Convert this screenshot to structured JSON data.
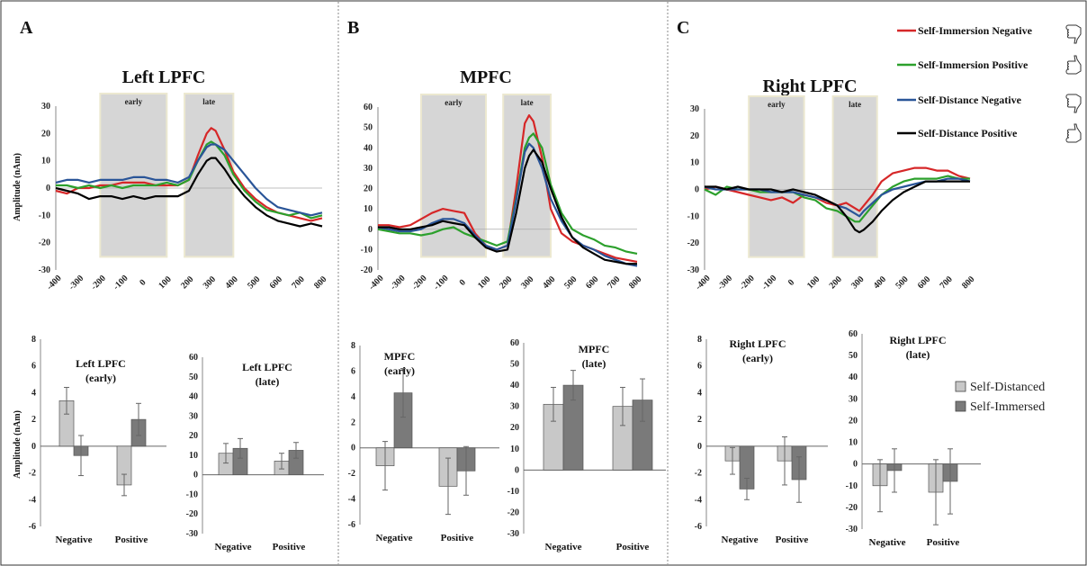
{
  "panels": [
    {
      "letter": "A"
    },
    {
      "letter": "B"
    },
    {
      "letter": "C"
    }
  ],
  "legend": {
    "lines": [
      {
        "label": "Self-Immersion Negative",
        "color": "#d62728",
        "icon": "thumbs-down-icon"
      },
      {
        "label": "Self-Immersion Positive",
        "color": "#2ca02c",
        "icon": "thumbs-up-icon"
      },
      {
        "label": "Self-Distance Negative",
        "color": "#2a5598",
        "icon": "thumbs-down-icon"
      },
      {
        "label": "Self-Distance Positive",
        "color": "#000000",
        "icon": "thumbs-up-icon"
      }
    ],
    "bars": [
      {
        "label": "Self-Distanced",
        "color": "#c8c8c8"
      },
      {
        "label": "Self-Immersed",
        "color": "#7a7a7a"
      }
    ]
  },
  "chart_data": [
    {
      "type": "line",
      "panel": "A",
      "title": "Left LPFC",
      "ylabel": "Amplitude (nAm)",
      "xlim": [
        -400,
        800
      ],
      "ylim": [
        -30,
        30
      ],
      "xticks": [
        -400,
        -300,
        -200,
        -100,
        0,
        100,
        200,
        300,
        400,
        500,
        600,
        700,
        800
      ],
      "yticks": [
        -30,
        -20,
        -10,
        0,
        10,
        20,
        30
      ],
      "windows": [
        {
          "label": "early",
          "range": [
            -200,
            100
          ]
        },
        {
          "label": "late",
          "range": [
            180,
            400
          ]
        }
      ],
      "x": [
        -400,
        -350,
        -300,
        -250,
        -200,
        -150,
        -100,
        -50,
        0,
        50,
        100,
        150,
        200,
        240,
        280,
        300,
        320,
        360,
        400,
        450,
        500,
        550,
        600,
        650,
        700,
        750,
        800
      ],
      "series": [
        {
          "name": "Self-Immersion Negative",
          "values": [
            -1,
            -2,
            0,
            0,
            1,
            1,
            2,
            2,
            2,
            1,
            1,
            1,
            3,
            12,
            20,
            22,
            21,
            14,
            6,
            0,
            -4,
            -7,
            -9,
            -10,
            -11,
            -12,
            -11
          ]
        },
        {
          "name": "Self-Immersion Positive",
          "values": [
            1,
            1,
            0,
            1,
            0,
            1,
            0,
            1,
            1,
            1,
            2,
            1,
            3,
            10,
            16,
            17,
            16,
            12,
            5,
            -1,
            -5,
            -8,
            -9,
            -10,
            -9,
            -11,
            -10
          ]
        },
        {
          "name": "Self-Distance Negative",
          "values": [
            2,
            3,
            3,
            2,
            3,
            3,
            3,
            4,
            4,
            3,
            3,
            2,
            4,
            10,
            15,
            16,
            16,
            14,
            10,
            5,
            0,
            -4,
            -7,
            -8,
            -9,
            -10,
            -9
          ]
        },
        {
          "name": "Self-Distance Positive",
          "values": [
            0,
            -1,
            -2,
            -4,
            -3,
            -3,
            -4,
            -3,
            -4,
            -3,
            -3,
            -3,
            -1,
            5,
            10,
            11,
            11,
            7,
            2,
            -3,
            -7,
            -10,
            -12,
            -13,
            -14,
            -13,
            -14
          ]
        }
      ]
    },
    {
      "type": "line",
      "panel": "B",
      "title": "MPFC",
      "xlim": [
        -400,
        800
      ],
      "ylim": [
        -20,
        60
      ],
      "xticks": [
        -400,
        -300,
        -200,
        -100,
        0,
        100,
        200,
        300,
        400,
        500,
        600,
        700,
        800
      ],
      "yticks": [
        -20,
        -10,
        0,
        10,
        20,
        30,
        40,
        50,
        60
      ],
      "windows": [
        {
          "label": "early",
          "range": [
            -200,
            100
          ]
        },
        {
          "label": "late",
          "range": [
            180,
            400
          ]
        }
      ],
      "x": [
        -400,
        -350,
        -300,
        -250,
        -200,
        -150,
        -100,
        -50,
        0,
        50,
        100,
        150,
        200,
        240,
        280,
        300,
        320,
        360,
        400,
        450,
        500,
        550,
        600,
        650,
        700,
        750,
        800
      ],
      "series": [
        {
          "name": "Self-Immersion Negative",
          "values": [
            2,
            2,
            1,
            2,
            5,
            8,
            10,
            9,
            8,
            -2,
            -8,
            -10,
            -8,
            20,
            52,
            56,
            53,
            35,
            10,
            -2,
            -6,
            -8,
            -10,
            -12,
            -14,
            -15,
            -16
          ]
        },
        {
          "name": "Self-Immersion Positive",
          "values": [
            0,
            -1,
            -2,
            -2,
            -3,
            -2,
            0,
            1,
            -2,
            -4,
            -6,
            -8,
            -6,
            15,
            40,
            45,
            47,
            40,
            22,
            8,
            0,
            -3,
            -5,
            -8,
            -9,
            -11,
            -12
          ]
        },
        {
          "name": "Self-Distance Negative",
          "values": [
            1,
            0,
            -1,
            -1,
            0,
            3,
            5,
            5,
            3,
            -3,
            -8,
            -10,
            -8,
            14,
            38,
            42,
            40,
            30,
            15,
            4,
            -4,
            -8,
            -10,
            -13,
            -15,
            -17,
            -18
          ]
        },
        {
          "name": "Self-Distance Positive",
          "values": [
            1,
            1,
            0,
            0,
            1,
            2,
            4,
            3,
            2,
            -4,
            -9,
            -11,
            -10,
            8,
            30,
            36,
            39,
            33,
            20,
            6,
            -4,
            -9,
            -12,
            -15,
            -16,
            -17,
            -17
          ]
        }
      ]
    },
    {
      "type": "line",
      "panel": "C",
      "title": "Right LPFC",
      "xlim": [
        -400,
        800
      ],
      "ylim": [
        -30,
        30
      ],
      "xticks": [
        -400,
        -300,
        -200,
        -100,
        0,
        100,
        200,
        300,
        400,
        500,
        600,
        700,
        800
      ],
      "yticks": [
        -30,
        -20,
        -10,
        0,
        10,
        20,
        30
      ],
      "windows": [
        {
          "label": "early",
          "range": [
            -200,
            50
          ]
        },
        {
          "label": "late",
          "range": [
            180,
            380
          ]
        }
      ],
      "x": [
        -400,
        -350,
        -300,
        -250,
        -200,
        -150,
        -100,
        -50,
        0,
        50,
        100,
        150,
        200,
        240,
        280,
        300,
        320,
        360,
        400,
        450,
        500,
        550,
        600,
        650,
        700,
        750,
        800
      ],
      "series": [
        {
          "name": "Self-Immersion Negative",
          "values": [
            0,
            1,
            0,
            -1,
            -2,
            -3,
            -4,
            -3,
            -5,
            -2,
            -3,
            -5,
            -6,
            -5,
            -7,
            -8,
            -6,
            -2,
            3,
            6,
            7,
            8,
            8,
            7,
            7,
            5,
            4
          ]
        },
        {
          "name": "Self-Immersion Positive",
          "values": [
            0,
            -2,
            1,
            0,
            0,
            -1,
            -1,
            -1,
            -1,
            -3,
            -4,
            -7,
            -8,
            -10,
            -12,
            -12,
            -10,
            -6,
            -2,
            1,
            3,
            4,
            4,
            4,
            5,
            4,
            4
          ]
        },
        {
          "name": "Self-Distance Negative",
          "values": [
            1,
            0,
            0,
            0,
            0,
            0,
            -1,
            -1,
            -1,
            -2,
            -3,
            -4,
            -6,
            -7,
            -9,
            -10,
            -8,
            -5,
            -2,
            0,
            1,
            2,
            3,
            3,
            4,
            4,
            3
          ]
        },
        {
          "name": "Self-Distance Positive",
          "values": [
            1,
            1,
            0,
            1,
            0,
            0,
            0,
            -1,
            0,
            -1,
            -2,
            -4,
            -6,
            -10,
            -15,
            -16,
            -15,
            -12,
            -8,
            -4,
            -1,
            1,
            3,
            3,
            3,
            3,
            3
          ]
        }
      ]
    },
    {
      "type": "bar",
      "panel": "A",
      "title": "Left LPFC",
      "subtitle": "(early)",
      "ylabel": "Amplitude (nAm)",
      "ylim": [
        -6,
        8
      ],
      "yticks": [
        -6,
        -4,
        -2,
        0,
        2,
        4,
        6,
        8
      ],
      "categories": [
        "Negative",
        "Positive"
      ],
      "series": [
        {
          "name": "Self-Distanced",
          "values": [
            3.4,
            -2.9
          ],
          "errors": [
            1.0,
            0.8
          ]
        },
        {
          "name": "Self-Immersed",
          "values": [
            -0.7,
            2.0
          ],
          "errors": [
            1.5,
            1.2
          ]
        }
      ]
    },
    {
      "type": "bar",
      "panel": "A",
      "title": "Left LPFC",
      "subtitle": "(late)",
      "ylim": [
        -30,
        60
      ],
      "yticks": [
        -30,
        -20,
        -10,
        0,
        10,
        20,
        30,
        40,
        50,
        60
      ],
      "categories": [
        "Negative",
        "Positive"
      ],
      "series": [
        {
          "name": "Self-Distanced",
          "values": [
            11,
            7
          ],
          "errors": [
            5,
            4
          ]
        },
        {
          "name": "Self-Immersed",
          "values": [
            13.5,
            12.5
          ],
          "errors": [
            5,
            4
          ]
        }
      ]
    },
    {
      "type": "bar",
      "panel": "B",
      "title": "MPFC",
      "subtitle": "(early)",
      "ylim": [
        -6,
        8
      ],
      "yticks": [
        -6,
        -4,
        -2,
        0,
        2,
        4,
        6,
        8
      ],
      "categories": [
        "Negative",
        "Positive"
      ],
      "series": [
        {
          "name": "Self-Distanced",
          "values": [
            -1.4,
            -3.0
          ],
          "errors": [
            1.9,
            2.2
          ]
        },
        {
          "name": "Self-Immersed",
          "values": [
            4.3,
            -1.8
          ],
          "errors": [
            1.9,
            1.9
          ]
        }
      ]
    },
    {
      "type": "bar",
      "panel": "B",
      "title": "MPFC",
      "subtitle": "(late)",
      "ylim": [
        -30,
        60
      ],
      "yticks": [
        -30,
        -20,
        -10,
        0,
        10,
        20,
        30,
        40,
        50,
        60
      ],
      "categories": [
        "Negative",
        "Positive"
      ],
      "series": [
        {
          "name": "Self-Distanced",
          "values": [
            31,
            30
          ],
          "errors": [
            8,
            9
          ]
        },
        {
          "name": "Self-Immersed",
          "values": [
            40,
            33
          ],
          "errors": [
            7,
            10
          ]
        }
      ]
    },
    {
      "type": "bar",
      "panel": "C",
      "title": "Right LPFC",
      "subtitle": "(early)",
      "ylim": [
        -6,
        8
      ],
      "yticks": [
        -6,
        -4,
        -2,
        0,
        2,
        4,
        6,
        8
      ],
      "categories": [
        "Negative",
        "Positive"
      ],
      "series": [
        {
          "name": "Self-Distanced",
          "values": [
            -1.1,
            -1.1
          ],
          "errors": [
            1.0,
            1.8
          ]
        },
        {
          "name": "Self-Immersed",
          "values": [
            -3.2,
            -2.5
          ],
          "errors": [
            0.8,
            1.7
          ]
        }
      ]
    },
    {
      "type": "bar",
      "panel": "C",
      "title": "Right LPFC",
      "subtitle": "(late)",
      "ylim": [
        -30,
        60
      ],
      "yticks": [
        -30,
        -20,
        -10,
        0,
        10,
        20,
        30,
        40,
        50,
        60
      ],
      "categories": [
        "Negative",
        "Positive"
      ],
      "series": [
        {
          "name": "Self-Distanced",
          "values": [
            -10,
            -13
          ],
          "errors": [
            12,
            15
          ]
        },
        {
          "name": "Self-Immersed",
          "values": [
            -3,
            -8
          ],
          "errors": [
            10,
            15
          ]
        }
      ]
    }
  ]
}
